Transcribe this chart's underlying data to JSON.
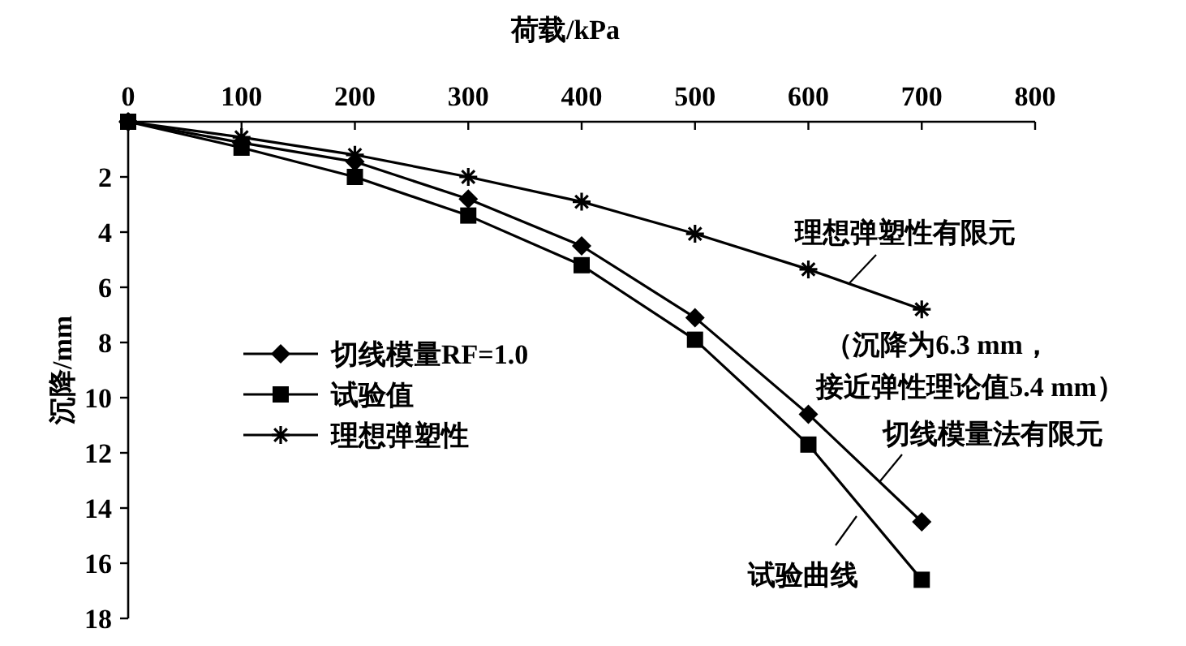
{
  "chart_data": {
    "type": "line",
    "xlabel": "荷载/kPa",
    "ylabel": "沉降/mm",
    "x": [
      0,
      100,
      200,
      300,
      400,
      500,
      600,
      700
    ],
    "xlim": [
      0,
      800
    ],
    "xticks": [
      0,
      100,
      200,
      300,
      400,
      500,
      600,
      700,
      800
    ],
    "ylim": [
      18,
      0
    ],
    "yticks": [
      2,
      4,
      6,
      8,
      10,
      12,
      14,
      16,
      18
    ],
    "legend": "left",
    "grid": false,
    "line_style": "solid",
    "series": [
      {
        "name": "切线模量RF=1.0",
        "color": "#000000",
        "marker": "diamond",
        "values": [
          0,
          0.76,
          1.45,
          2.8,
          4.5,
          7.1,
          10.6,
          14.5
        ]
      },
      {
        "name": "试验值",
        "color": "#000000",
        "marker": "square",
        "values": [
          0,
          0.94,
          2.0,
          3.4,
          5.2,
          7.9,
          11.7,
          16.6
        ]
      },
      {
        "name": "理想弹塑性",
        "color": "#000000",
        "marker": "cross",
        "values": [
          0,
          0.56,
          1.2,
          2.0,
          2.9,
          4.06,
          5.35,
          6.8
        ]
      }
    ],
    "annotations": [
      "理想弹塑性有限元",
      "（沉降为6.3 mm，",
      "接近弹性理论值5.4 mm）",
      "切线模量法有限元",
      "试验曲线"
    ]
  }
}
